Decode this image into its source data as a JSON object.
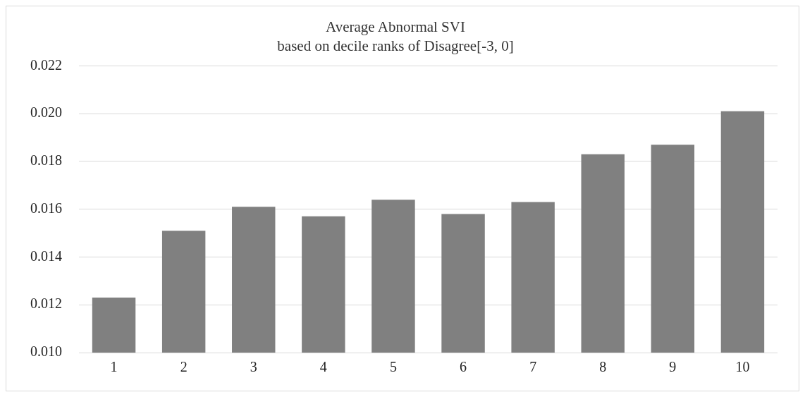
{
  "chart_data": {
    "type": "bar",
    "title": "Average Abnormal SVI",
    "subtitle": "based on decile ranks of Disagree[-3, 0]",
    "categories": [
      "1",
      "2",
      "3",
      "4",
      "5",
      "6",
      "7",
      "8",
      "9",
      "10"
    ],
    "values": [
      0.0123,
      0.0151,
      0.0161,
      0.0157,
      0.0164,
      0.0158,
      0.0163,
      0.0183,
      0.0187,
      0.0201
    ],
    "color": "#808080",
    "ylim": [
      0.01,
      0.022
    ],
    "yticks": [
      {
        "value": 0.01,
        "label": "0.010"
      },
      {
        "value": 0.012,
        "label": "0.012"
      },
      {
        "value": 0.014,
        "label": "0.014"
      },
      {
        "value": 0.016,
        "label": "0.016"
      },
      {
        "value": 0.018,
        "label": "0.018"
      },
      {
        "value": 0.02,
        "label": "0.020"
      },
      {
        "value": 0.022,
        "label": "0.022"
      }
    ],
    "grid": "y",
    "legend": false
  }
}
